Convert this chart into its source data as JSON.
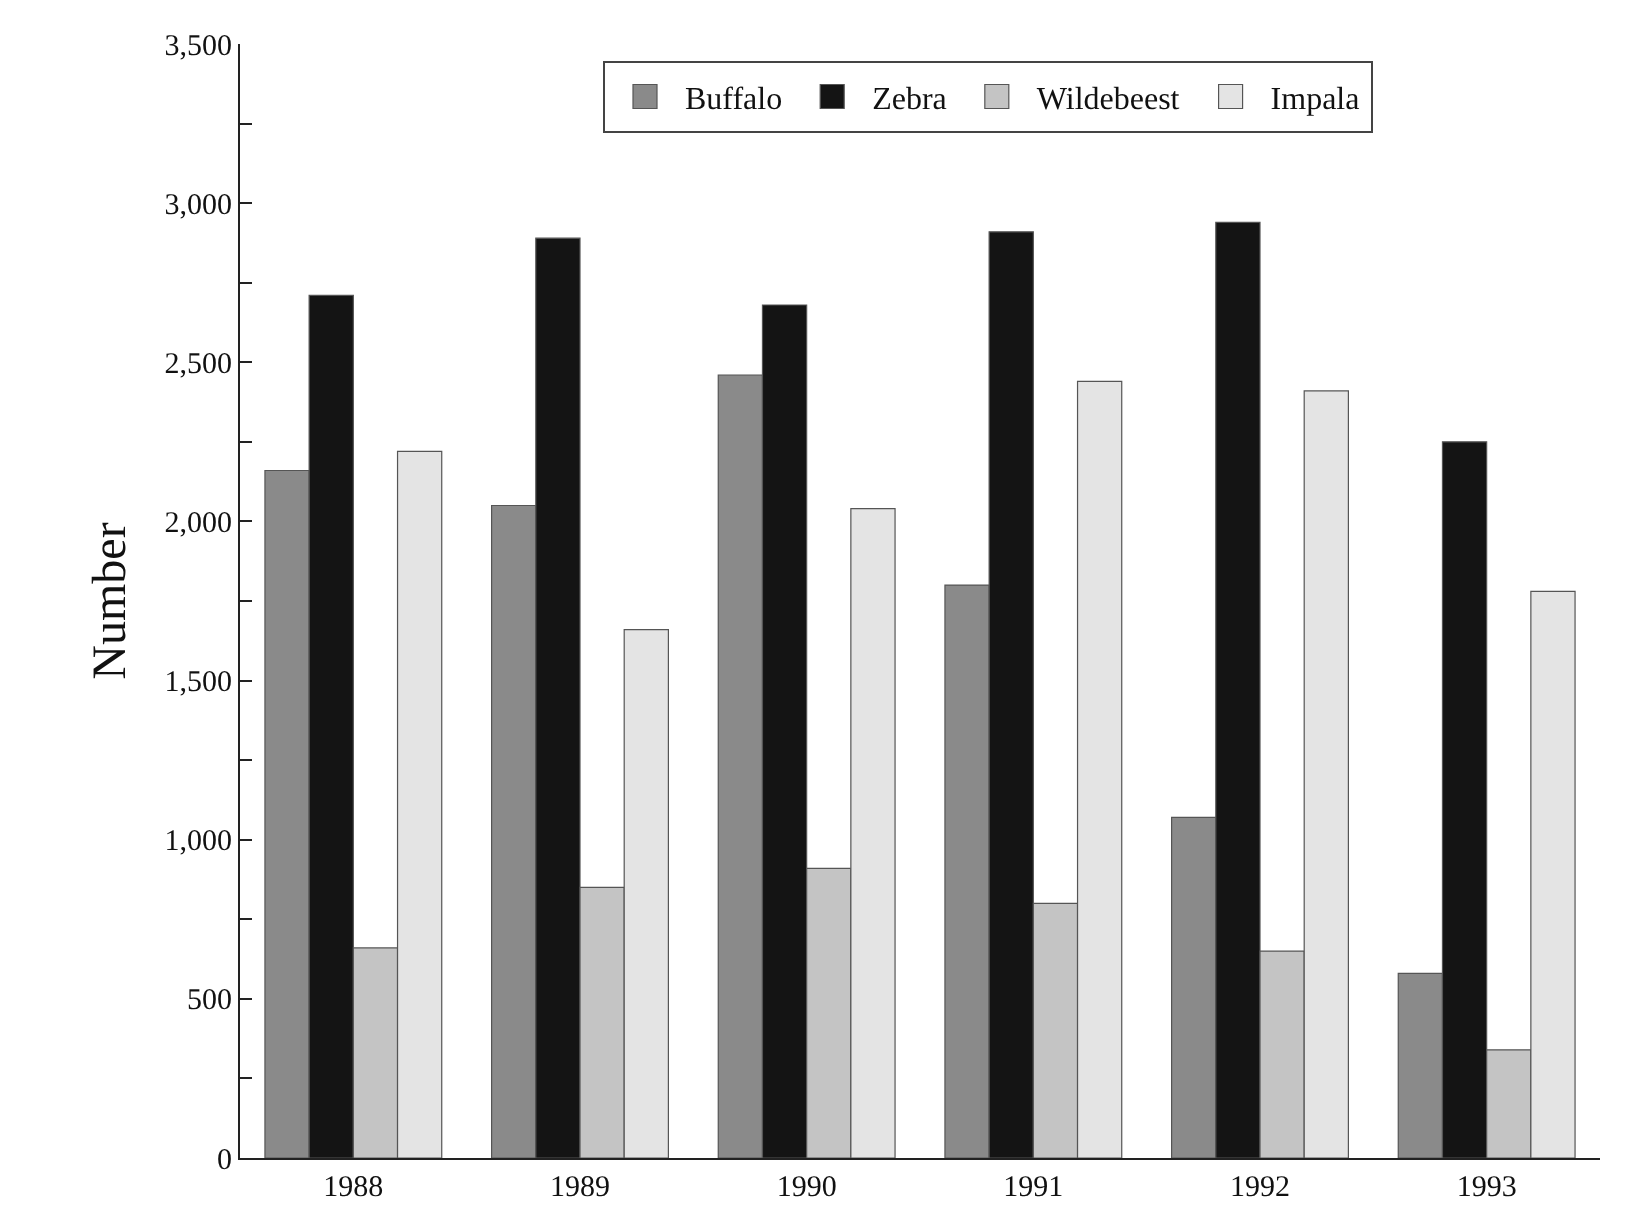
{
  "chart_data": {
    "type": "bar",
    "ylabel": "Number",
    "categories": [
      "1988",
      "1989",
      "1990",
      "1991",
      "1992",
      "1993"
    ],
    "series": [
      {
        "name": "Buffalo",
        "color": "#8a8a8a",
        "values": [
          2160,
          2050,
          2460,
          1800,
          1070,
          580
        ]
      },
      {
        "name": "Zebra",
        "color": "#141414",
        "values": [
          2710,
          2890,
          2680,
          2910,
          2940,
          2250
        ]
      },
      {
        "name": "Wildebeest",
        "color": "#c4c4c4",
        "values": [
          660,
          850,
          910,
          800,
          650,
          340
        ]
      },
      {
        "name": "Impala",
        "color": "#e4e4e4",
        "values": [
          2220,
          1660,
          2040,
          2440,
          2410,
          1780
        ]
      }
    ],
    "ylim": [
      0,
      3500
    ],
    "yticks": [
      {
        "value": 0,
        "label": "0"
      },
      {
        "value": 250,
        "label": null
      },
      {
        "value": 500,
        "label": "500"
      },
      {
        "value": 750,
        "label": null
      },
      {
        "value": 1000,
        "label": "1,000"
      },
      {
        "value": 1250,
        "label": null
      },
      {
        "value": 1500,
        "label": "1,500"
      },
      {
        "value": 1750,
        "label": null
      },
      {
        "value": 2000,
        "label": "2,000"
      },
      {
        "value": 2250,
        "label": null
      },
      {
        "value": 2500,
        "label": "2,500"
      },
      {
        "value": 2750,
        "label": null
      },
      {
        "value": 3000,
        "label": "3,000"
      },
      {
        "value": 3250,
        "label": null
      },
      {
        "value": 3500,
        "label": "3,500"
      }
    ],
    "grid": false,
    "legend": "top"
  }
}
